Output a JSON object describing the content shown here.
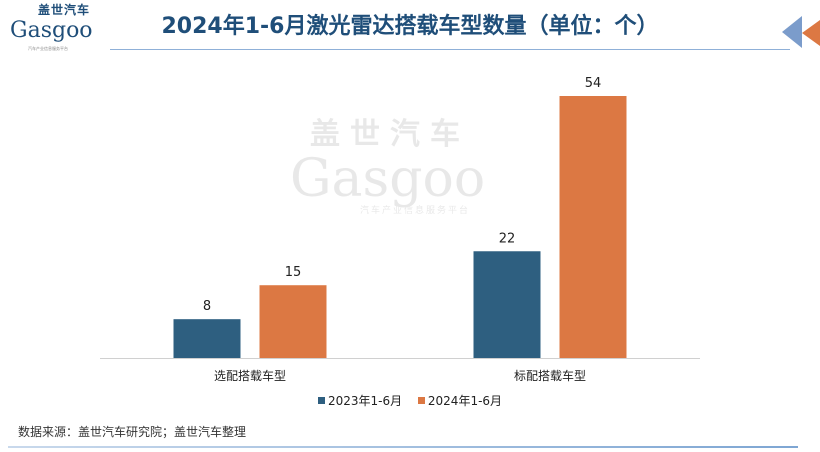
{
  "title": "2024年1-6月激光雷达搭载车型数量（单位：个）",
  "logo": {
    "cn": "盖世汽车",
    "en": "Gasgoo",
    "sub": "汽车产业信息服务平台"
  },
  "watermark": {
    "cn": "盖世汽车",
    "en": "Gasgoo",
    "sub": "汽车产业信息服务平台"
  },
  "source": "数据来源：盖世汽车研究院；盖世汽车整理",
  "colors": {
    "s2023": "#2e5f80",
    "s2024": "#dc7843",
    "title": "#1f4e79"
  },
  "chart_data": {
    "type": "bar",
    "title": "2024年1-6月激光雷达搭载车型数量（单位：个）",
    "categories": [
      "选配搭载车型",
      "标配搭载车型"
    ],
    "series": [
      {
        "name": "2023年1-6月",
        "values": [
          8,
          22
        ],
        "color": "#2e5f80"
      },
      {
        "name": "2024年1-6月",
        "values": [
          15,
          54
        ],
        "color": "#dc7843"
      }
    ],
    "ylim": [
      0,
      54
    ],
    "grid": false,
    "legend": "bottom",
    "xlabel": "",
    "ylabel": ""
  }
}
